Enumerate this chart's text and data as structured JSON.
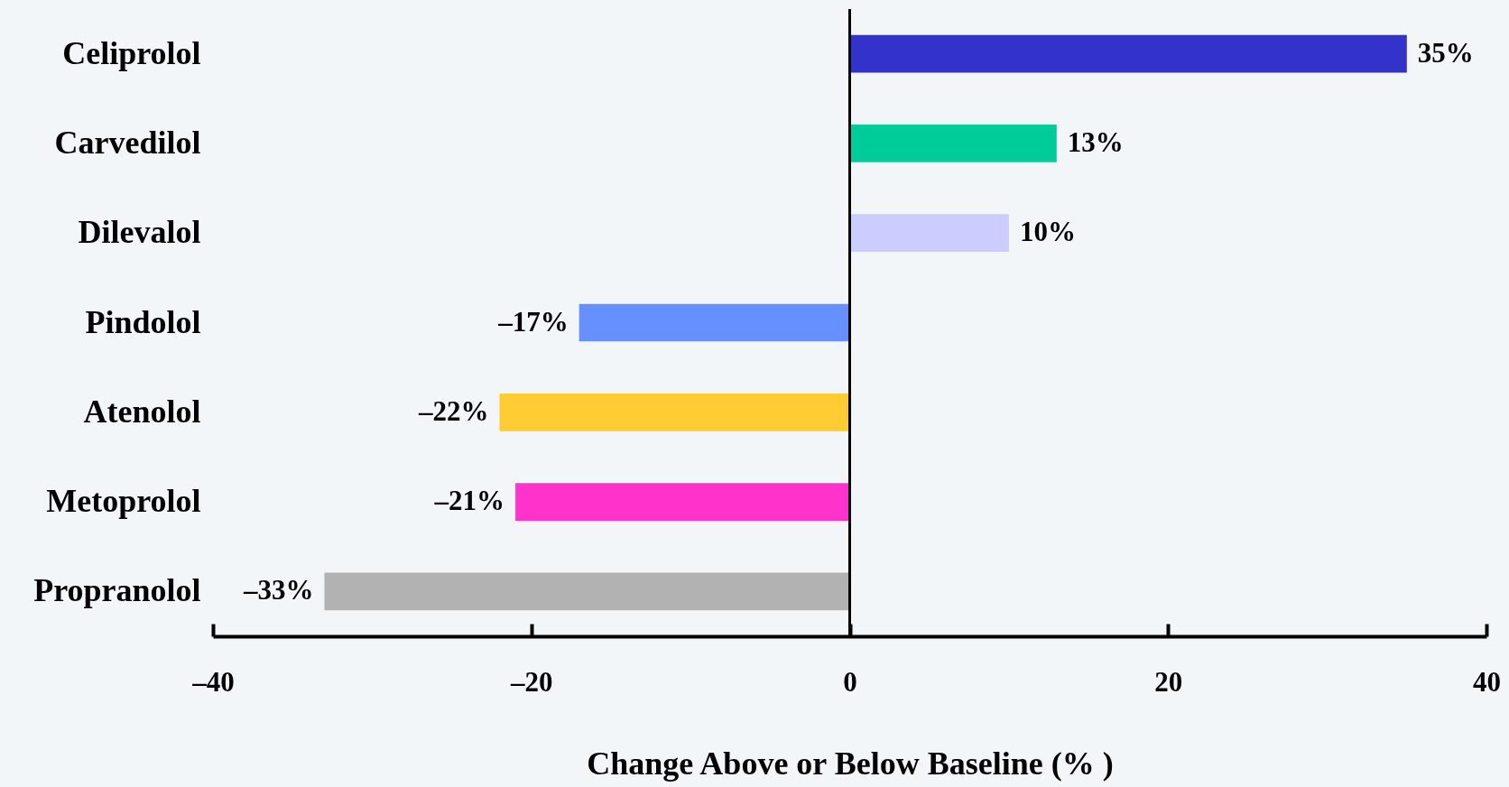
{
  "chart_data": {
    "type": "bar",
    "orientation": "horizontal",
    "xlabel": "Change Above or Below Baseline (% )",
    "categories": [
      "Celiprolol",
      "Carvedilol",
      "Dilevalol",
      "Pindolol",
      "Atenolol",
      "Metoprolol",
      "Propranolol"
    ],
    "values": [
      35,
      13,
      10,
      -17,
      -22,
      -21,
      -33
    ],
    "colors": [
      "#3333cc",
      "#00cc99",
      "#ccccff",
      "#6690ff",
      "#ffcc33",
      "#ff33cc",
      "#b2b2b2"
    ],
    "value_labels": [
      "35%",
      "13%",
      "10%",
      "–17%",
      "–22%",
      "–21%",
      "–33%"
    ],
    "xlim": [
      -40,
      40
    ],
    "xticks": [
      {
        "value": -40,
        "label": "–40"
      },
      {
        "value": -20,
        "label": "–20"
      },
      0,
      20,
      40
    ],
    "ref_lines": [
      {
        "axis": "x",
        "value": 0,
        "color": "#000000"
      }
    ],
    "grid": false
  }
}
